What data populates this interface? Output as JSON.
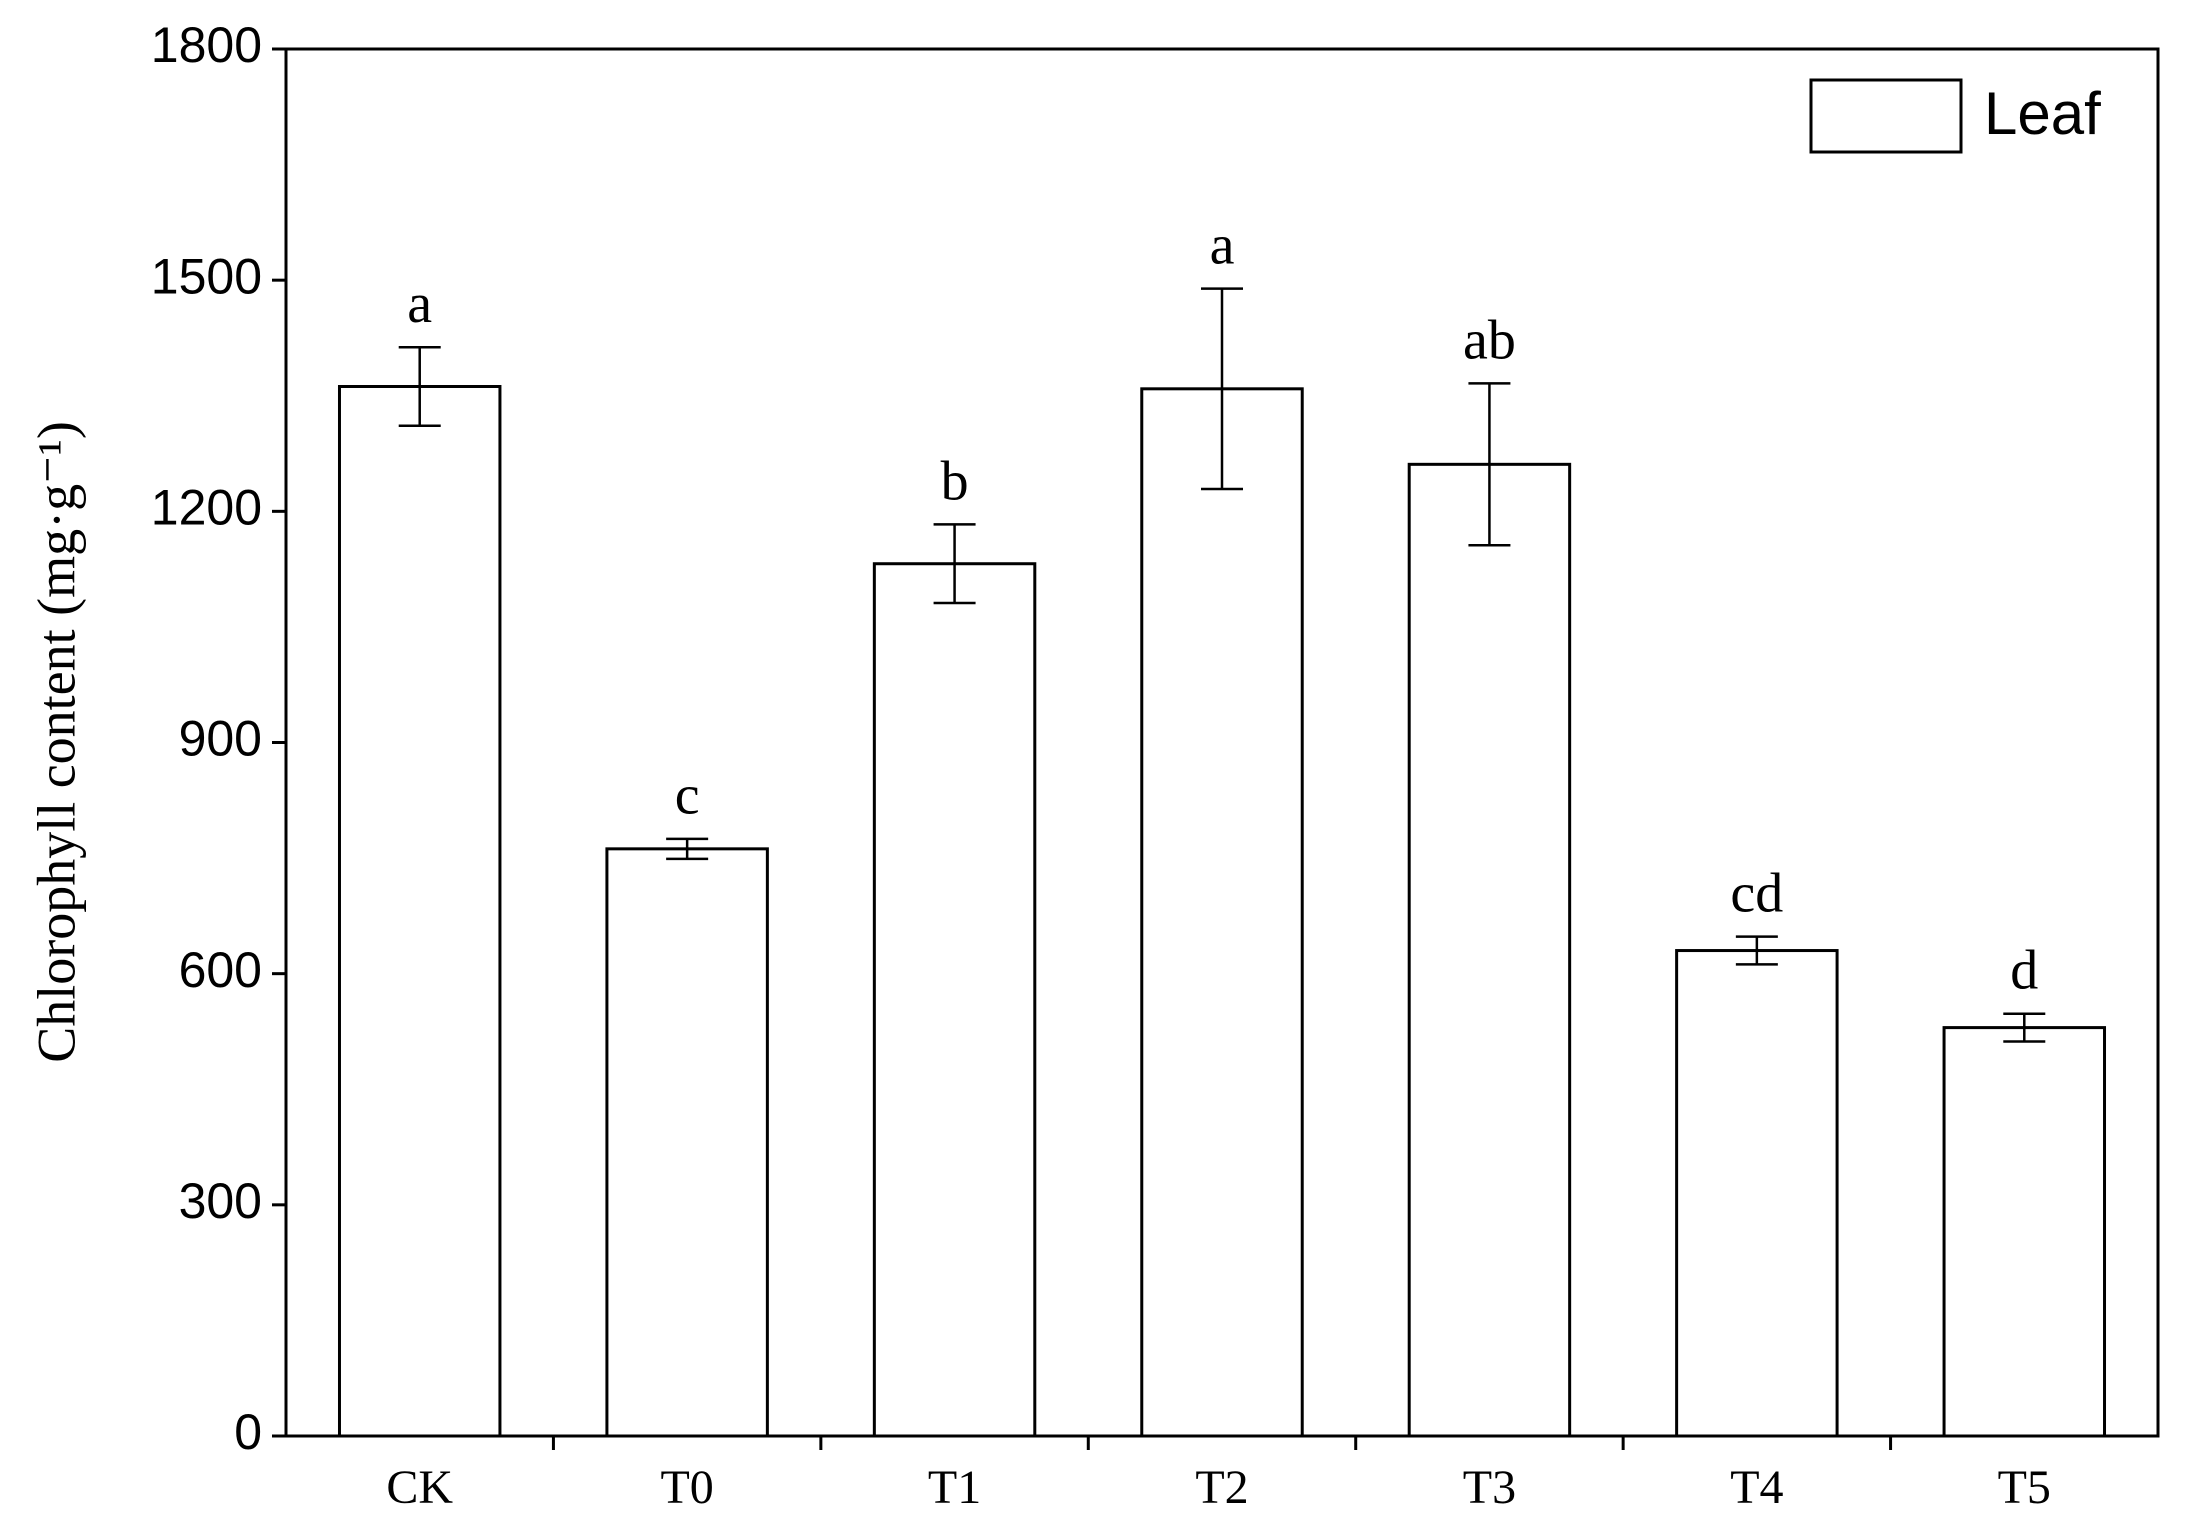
{
  "chart_data": {
    "type": "bar",
    "y_label": "Chlorophyll content (mg·g⁻¹)",
    "categories": [
      "CK",
      "T0",
      "T1",
      "T2",
      "T3",
      "T4",
      "T5"
    ],
    "series": [
      {
        "name": "Leaf",
        "color": "#ffffff",
        "values": [
          1362,
          762,
          1132,
          1359,
          1261,
          630,
          530
        ],
        "errors": [
          51,
          13,
          51,
          130,
          105,
          18,
          18
        ],
        "letters": [
          "a",
          "c",
          "b",
          "a",
          "ab",
          "cd",
          "d"
        ]
      }
    ],
    "ylim": [
      0,
      1800
    ],
    "yticks": [
      0,
      300,
      600,
      900,
      1200,
      1500,
      1800
    ],
    "grid": false,
    "legend": "top-right"
  }
}
